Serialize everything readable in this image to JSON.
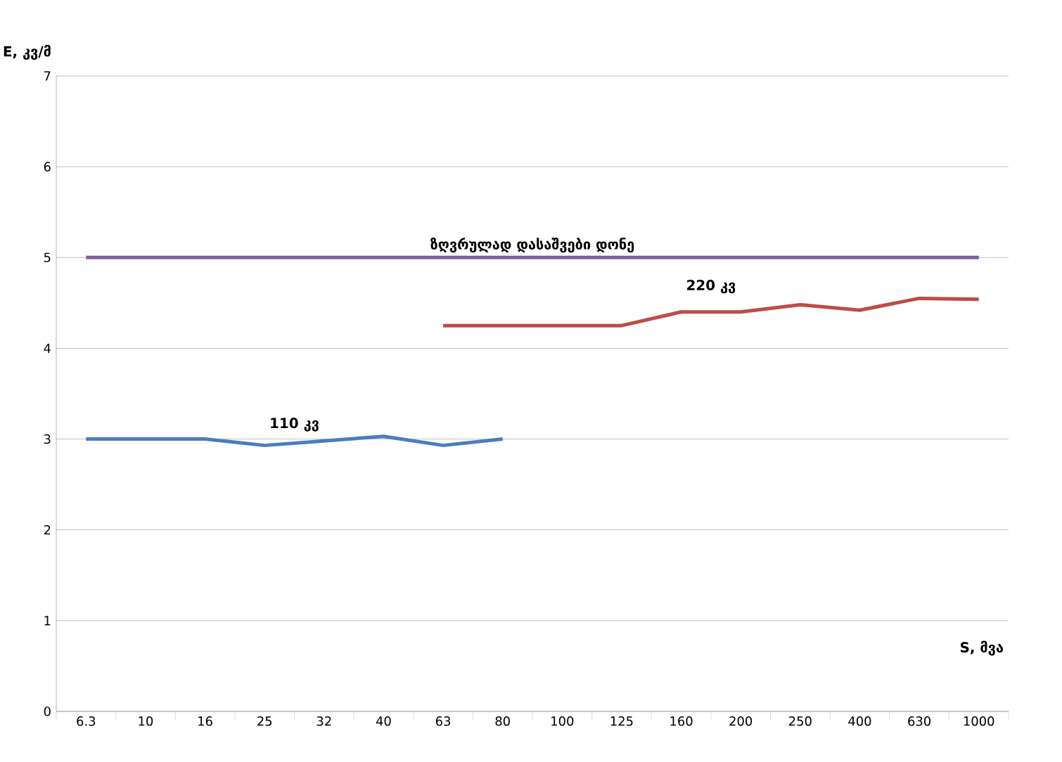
{
  "chart_data": {
    "type": "line",
    "ylabel": "E, კვ/მ",
    "xlabel": "S, მვა",
    "categories": [
      "6.3",
      "10",
      "16",
      "25",
      "32",
      "40",
      "63",
      "80",
      "100",
      "125",
      "160",
      "200",
      "250",
      "400",
      "630",
      "1000"
    ],
    "series": [
      {
        "name": "110 კვ",
        "color": "#4a7ebb",
        "values": [
          3.0,
          3.0,
          3.0,
          2.93,
          2.98,
          3.03,
          2.93,
          3.0,
          null,
          null,
          null,
          null,
          null,
          null,
          null,
          null
        ]
      },
      {
        "name": "220 კვ",
        "color": "#be4b48",
        "values": [
          null,
          null,
          null,
          null,
          null,
          null,
          4.25,
          4.25,
          4.25,
          4.25,
          4.4,
          4.4,
          4.48,
          4.42,
          4.55,
          4.54
        ]
      },
      {
        "name": "ზღვრულად დასაშვები დონე",
        "color": "#7d5fa0",
        "values": [
          5,
          5,
          5,
          5,
          5,
          5,
          5,
          5,
          5,
          5,
          5,
          5,
          5,
          5,
          5,
          5
        ]
      }
    ],
    "ylim": [
      0,
      7
    ],
    "yticks": [
      0,
      1,
      2,
      3,
      4,
      5,
      6,
      7
    ],
    "grid": "y",
    "marker": "none",
    "line_style": "solid",
    "legend": false
  }
}
